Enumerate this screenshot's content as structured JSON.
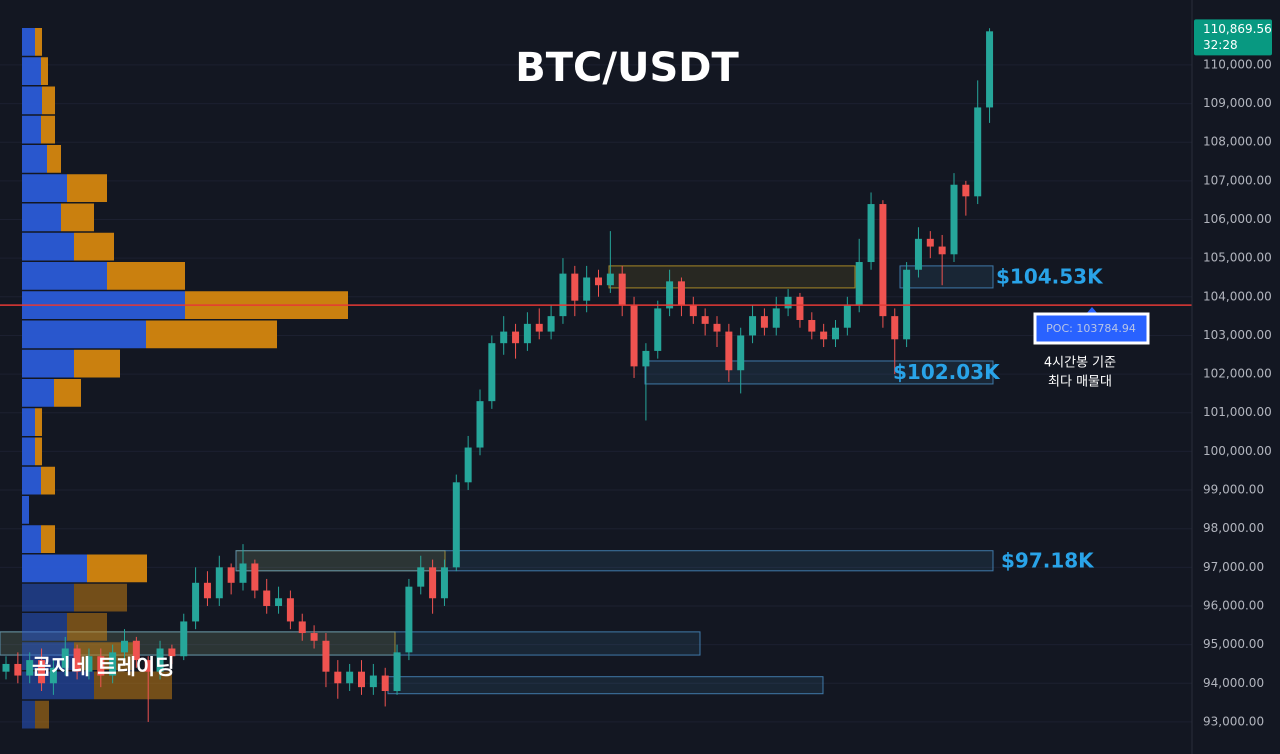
{
  "chart_data": {
    "type": "candlestick",
    "title": "BTC/USDT",
    "watermark": "곰지네 트레이딩",
    "up_color": "#26a69a",
    "down_color": "#ef5350",
    "ylim": [
      92170,
      111680
    ],
    "yticks": [
      {
        "value": 93000,
        "label": "93,000.00"
      },
      {
        "value": 94000,
        "label": "94,000.00"
      },
      {
        "value": 95000,
        "label": "95,000.00"
      },
      {
        "value": 96000,
        "label": "96,000.00"
      },
      {
        "value": 97000,
        "label": "97,000.00"
      },
      {
        "value": 98000,
        "label": "98,000.00"
      },
      {
        "value": 99000,
        "label": "99,000.00"
      },
      {
        "value": 100000,
        "label": "100,000.00"
      },
      {
        "value": 101000,
        "label": "101,000.00"
      },
      {
        "value": 102000,
        "label": "102,000.00"
      },
      {
        "value": 103000,
        "label": "103,000.00"
      },
      {
        "value": 104000,
        "label": "104,000.00"
      },
      {
        "value": 105000,
        "label": "105,000.00"
      },
      {
        "value": 106000,
        "label": "106,000.00"
      },
      {
        "value": 107000,
        "label": "107,000.00"
      },
      {
        "value": 108000,
        "label": "108,000.00"
      },
      {
        "value": 109000,
        "label": "109,000.00"
      },
      {
        "value": 110000,
        "label": "110,000.00"
      }
    ],
    "grid": true,
    "current_price": {
      "value": 110869.56,
      "label": "110,869.56"
    },
    "countdown": "32:28",
    "poc": {
      "value": 103784.94,
      "label": "POC: 103784.94",
      "color": "#e53935"
    },
    "poc_note": [
      "4시간봉 기준",
      "최다 매물대"
    ],
    "candles": [
      [
        94300,
        94700,
        94100,
        94500
      ],
      [
        94500,
        94800,
        94000,
        94200
      ],
      [
        94200,
        94800,
        94000,
        94600
      ],
      [
        94600,
        94900,
        93800,
        94000
      ],
      [
        94000,
        94600,
        93700,
        94400
      ],
      [
        94400,
        95200,
        94200,
        94900
      ],
      [
        94900,
        95000,
        94100,
        94300
      ],
      [
        94300,
        94900,
        94100,
        94700
      ],
      [
        94700,
        94900,
        93900,
        94200
      ],
      [
        94200,
        95000,
        94000,
        94800
      ],
      [
        94800,
        95400,
        94600,
        95100
      ],
      [
        95100,
        95200,
        94400,
        94600
      ],
      [
        94600,
        94700,
        93000,
        94300
      ],
      [
        94300,
        95100,
        94100,
        94900
      ],
      [
        94900,
        95000,
        94500,
        94700
      ],
      [
        94700,
        95800,
        94600,
        95600
      ],
      [
        95600,
        97000,
        95400,
        96600
      ],
      [
        96600,
        96900,
        96000,
        96200
      ],
      [
        96200,
        97300,
        96000,
        97000
      ],
      [
        97000,
        97100,
        96300,
        96600
      ],
      [
        96600,
        97600,
        96400,
        97100
      ],
      [
        97100,
        97200,
        96200,
        96400
      ],
      [
        96400,
        96700,
        95800,
        96000
      ],
      [
        96000,
        96500,
        95800,
        96200
      ],
      [
        96200,
        96400,
        95400,
        95600
      ],
      [
        95600,
        95800,
        95100,
        95300
      ],
      [
        95300,
        95500,
        94900,
        95100
      ],
      [
        95100,
        95300,
        93900,
        94300
      ],
      [
        94300,
        94600,
        93600,
        94000
      ],
      [
        94000,
        94500,
        93800,
        94300
      ],
      [
        94300,
        94600,
        93700,
        93900
      ],
      [
        93900,
        94500,
        93700,
        94200
      ],
      [
        94200,
        94400,
        93400,
        93800
      ],
      [
        93800,
        95000,
        93700,
        94800
      ],
      [
        94800,
        96700,
        94600,
        96500
      ],
      [
        96500,
        97300,
        96300,
        97000
      ],
      [
        97000,
        97200,
        95800,
        96200
      ],
      [
        96200,
        97200,
        96000,
        97000
      ],
      [
        97000,
        99400,
        96900,
        99200
      ],
      [
        99200,
        100400,
        99000,
        100100
      ],
      [
        100100,
        101600,
        99900,
        101300
      ],
      [
        101300,
        103000,
        101100,
        102800
      ],
      [
        102800,
        103500,
        102500,
        103100
      ],
      [
        103100,
        103300,
        102400,
        102800
      ],
      [
        102800,
        103600,
        102600,
        103300
      ],
      [
        103300,
        103700,
        102900,
        103100
      ],
      [
        103100,
        103800,
        102900,
        103500
      ],
      [
        103500,
        105000,
        103300,
        104600
      ],
      [
        104600,
        104800,
        103500,
        103900
      ],
      [
        103900,
        104800,
        103600,
        104500
      ],
      [
        104500,
        104700,
        104000,
        104300
      ],
      [
        104300,
        105700,
        104100,
        104600
      ],
      [
        104600,
        104800,
        103500,
        103800
      ],
      [
        103800,
        104000,
        101900,
        102200
      ],
      [
        102200,
        102800,
        100800,
        102600
      ],
      [
        102600,
        103900,
        102400,
        103700
      ],
      [
        103700,
        104700,
        103500,
        104400
      ],
      [
        104400,
        104500,
        103500,
        103800
      ],
      [
        103800,
        104000,
        103300,
        103500
      ],
      [
        103500,
        103700,
        103000,
        103300
      ],
      [
        103300,
        103500,
        102700,
        103100
      ],
      [
        103100,
        103300,
        101800,
        102100
      ],
      [
        102100,
        103200,
        101500,
        103000
      ],
      [
        103000,
        103800,
        102800,
        103500
      ],
      [
        103500,
        103700,
        103000,
        103200
      ],
      [
        103200,
        104000,
        103000,
        103700
      ],
      [
        103700,
        104200,
        103500,
        104000
      ],
      [
        104000,
        104100,
        103200,
        103400
      ],
      [
        103400,
        103600,
        102900,
        103100
      ],
      [
        103100,
        103300,
        102700,
        102900
      ],
      [
        102900,
        103400,
        102700,
        103200
      ],
      [
        103200,
        104000,
        103000,
        103800
      ],
      [
        103800,
        105500,
        103600,
        104900
      ],
      [
        104900,
        106700,
        104700,
        106400
      ],
      [
        106400,
        106500,
        103200,
        103500
      ],
      [
        103500,
        103700,
        102000,
        102900
      ],
      [
        102900,
        104900,
        102700,
        104700
      ],
      [
        104700,
        105800,
        104500,
        105500
      ],
      [
        105500,
        105700,
        105000,
        105300
      ],
      [
        105300,
        105600,
        104300,
        105100
      ],
      [
        105100,
        107200,
        104900,
        106900
      ],
      [
        106900,
        107000,
        106100,
        106600
      ],
      [
        106600,
        109600,
        106400,
        108900
      ],
      [
        108900,
        110950,
        108500,
        110869.56
      ]
    ],
    "zones": [
      {
        "top": 104800,
        "bottom": 104230,
        "color": "#c9a227"
      },
      {
        "top": 104800,
        "bottom": 104230,
        "color": "#4a90c8",
        "label": "$104.53K"
      },
      {
        "top": 102340,
        "bottom": 101745,
        "color": "#4a90c8",
        "label": "$102.03K"
      },
      {
        "top": 97430,
        "bottom": 96910,
        "color": "#c9a227"
      },
      {
        "top": 97430,
        "bottom": 96910,
        "color": "#4a90c8",
        "label": "$97.18K"
      },
      {
        "top": 95330,
        "bottom": 94730,
        "color": "#c9a227"
      },
      {
        "top": 95330,
        "bottom": 94730,
        "color": "#4a90c8"
      },
      {
        "top": 94170,
        "bottom": 93730,
        "color": "#4a90c8"
      }
    ],
    "volume_profile": {
      "buy_color": "#2a5bd7",
      "sell_color": "#d4860f",
      "buy": [
        13,
        19,
        20,
        19,
        25,
        45,
        39,
        52,
        85,
        163,
        124,
        52,
        32,
        13,
        13,
        19,
        7,
        19,
        65,
        52,
        45,
        52,
        72,
        13
      ],
      "sell": [
        7,
        7,
        13,
        14,
        14,
        40,
        33,
        40,
        78,
        163,
        131,
        46,
        27,
        7,
        7,
        14,
        0,
        14,
        60,
        53,
        40,
        60,
        78,
        14
      ]
    }
  }
}
